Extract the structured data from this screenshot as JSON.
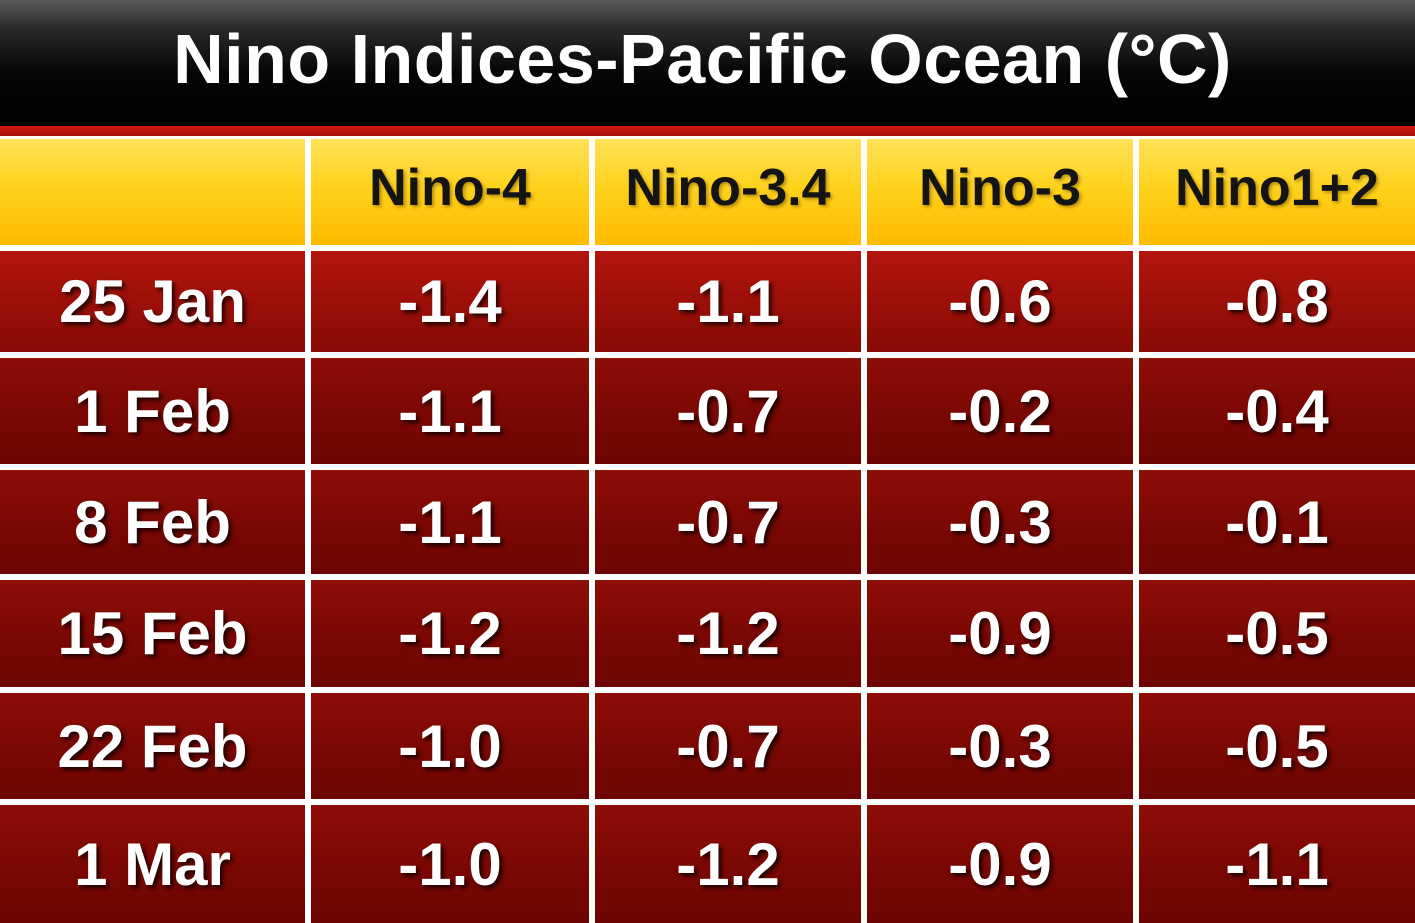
{
  "title": "Nino Indices-Pacific Ocean (°C)",
  "colors": {
    "title_bar": "#000000",
    "title_text": "#ffffff",
    "accent_rule": "#c4140d",
    "header_fill": "#ffcc00",
    "header_text": "#141414",
    "body_fill": "#7a0703",
    "body_text": "#ffffff",
    "grid_lines": "#ffffff"
  },
  "chart_data": {
    "type": "table",
    "title": "Nino Indices-Pacific Ocean (°C)",
    "corner_label": "",
    "columns": [
      "Nino-4",
      "Nino-3.4",
      "Nino-3",
      "Nino1+2"
    ],
    "rows": [
      {
        "label": "25 Jan",
        "values": [
          "-1.4",
          "-1.1",
          "-0.6",
          "-0.8"
        ]
      },
      {
        "label": "1 Feb",
        "values": [
          "-1.1",
          "-0.7",
          "-0.2",
          "-0.4"
        ]
      },
      {
        "label": "8 Feb",
        "values": [
          "-1.1",
          "-0.7",
          "-0.3",
          "-0.1"
        ]
      },
      {
        "label": "15 Feb",
        "values": [
          "-1.2",
          "-1.2",
          "-0.9",
          "-0.5"
        ]
      },
      {
        "label": "22 Feb",
        "values": [
          "-1.0",
          "-0.7",
          "-0.3",
          "-0.5"
        ]
      },
      {
        "label": "1 Mar",
        "values": [
          "-1.0",
          "-1.2",
          "-0.9",
          "-1.1"
        ]
      }
    ]
  }
}
